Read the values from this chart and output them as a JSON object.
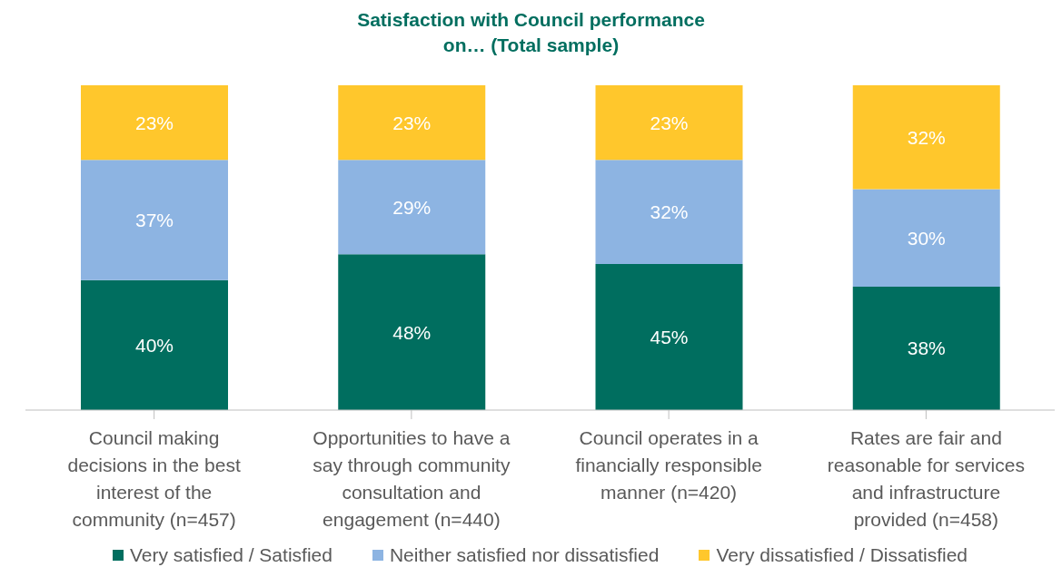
{
  "chart_data": {
    "type": "bar",
    "title": "Satisfaction with Council performance on… (Total sample)",
    "stacked": true,
    "legend": "bottom",
    "categories": [
      "Council making decisions in the best interest of the community (n=457)",
      "Opportunities to have a say through community consultation and engagement (n=440)",
      "Council operates in a financially responsible manner (n=420)",
      "Rates are fair and reasonable for services and infrastructure provided (n=458)"
    ],
    "series": [
      {
        "name": "Very satisfied / Satisfied",
        "color": "#006e5f",
        "values": [
          40,
          48,
          45,
          38
        ],
        "value_labels": [
          "40%",
          "48%",
          "45%",
          "38%"
        ]
      },
      {
        "name": "Neither satisfied nor dissatisfied",
        "color": "#8db4e2",
        "values": [
          37,
          29,
          32,
          30
        ],
        "value_labels": [
          "37%",
          "29%",
          "32%",
          "30%"
        ]
      },
      {
        "name": "Very dissatisfied / Dissatisfied",
        "color": "#ffc72c",
        "values": [
          23,
          23,
          23,
          32
        ],
        "value_labels": [
          "23%",
          "23%",
          "23%",
          "32%"
        ]
      }
    ]
  }
}
